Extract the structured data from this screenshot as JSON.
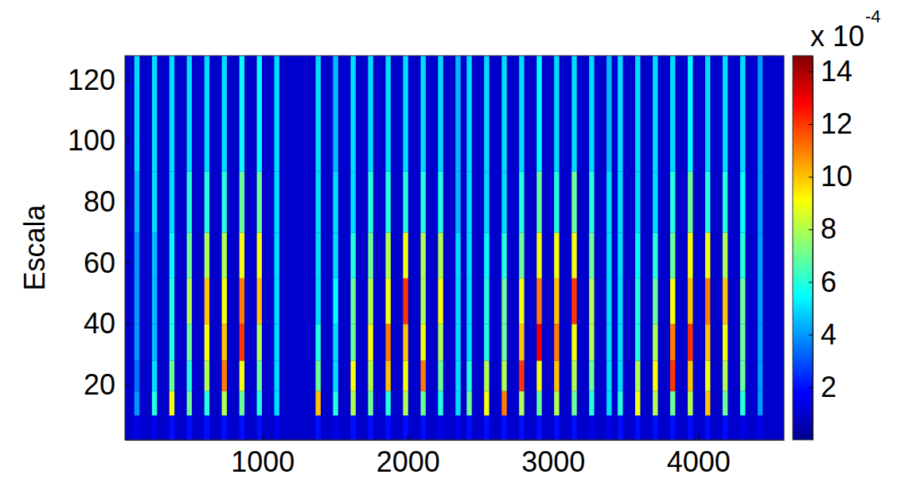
{
  "chart_data": {
    "type": "heatmap",
    "y_label": "Escala",
    "xlim": [
      53,
      4590
    ],
    "ylim": [
      2,
      128
    ],
    "xticks": [
      1000,
      2000,
      3000,
      4000
    ],
    "yticks": [
      20,
      40,
      60,
      80,
      100,
      120
    ],
    "y_edges": [
      2,
      10,
      18,
      28,
      40,
      55,
      70,
      90,
      128
    ],
    "cell_width": 35,
    "background": 1.0,
    "streaks": [
      {
        "x": 135,
        "values": [
          1.5,
          4,
          3.5,
          4,
          4,
          4,
          4.5,
          5
        ]
      },
      {
        "x": 256,
        "values": [
          1.5,
          6,
          5,
          4.5,
          4.5,
          4.5,
          5,
          5
        ]
      },
      {
        "x": 376,
        "values": [
          2,
          9,
          7,
          6,
          6,
          5.5,
          5,
          5
        ]
      },
      {
        "x": 496,
        "values": [
          2,
          7,
          6,
          7,
          8,
          7,
          6,
          5
        ]
      },
      {
        "x": 617,
        "values": [
          2,
          6,
          8,
          9,
          10,
          8,
          6,
          5
        ]
      },
      {
        "x": 737,
        "values": [
          2,
          8,
          11,
          10,
          9,
          8,
          6,
          5
        ]
      },
      {
        "x": 858,
        "values": [
          2,
          7,
          9,
          12,
          11,
          9,
          7,
          5.5
        ]
      },
      {
        "x": 978,
        "values": [
          2,
          6,
          7,
          8,
          10,
          9,
          7,
          5.5
        ]
      },
      {
        "x": 1098,
        "values": [
          1.5,
          5,
          5,
          5,
          5,
          5,
          5,
          5
        ]
      },
      {
        "x": 1383,
        "values": [
          2,
          10,
          7,
          6,
          5,
          5,
          5,
          5
        ]
      },
      {
        "x": 1503,
        "values": [
          1.5,
          6,
          5,
          5,
          5.5,
          5,
          5,
          4.5
        ]
      },
      {
        "x": 1624,
        "values": [
          2,
          8,
          9,
          7,
          7,
          6,
          5,
          5
        ]
      },
      {
        "x": 1744,
        "values": [
          2,
          7,
          8,
          9,
          8,
          7,
          6,
          5
        ]
      },
      {
        "x": 1865,
        "values": [
          2,
          6,
          10,
          11,
          9,
          8,
          6,
          5
        ]
      },
      {
        "x": 1985,
        "values": [
          2,
          8,
          9,
          10,
          12,
          9,
          6,
          5
        ]
      },
      {
        "x": 2106,
        "values": [
          2,
          7,
          11,
          9,
          8,
          8,
          6,
          5
        ]
      },
      {
        "x": 2226,
        "values": [
          1.5,
          6,
          7,
          8,
          9,
          8,
          6,
          5
        ]
      },
      {
        "x": 2346,
        "values": [
          1.5,
          5,
          5,
          5,
          5,
          5,
          4.5,
          4.5
        ]
      },
      {
        "x": 2423,
        "values": [
          2,
          7,
          6,
          5,
          5,
          5,
          5,
          5
        ]
      },
      {
        "x": 2543,
        "values": [
          2,
          9,
          8,
          6,
          6,
          5.5,
          5,
          5
        ]
      },
      {
        "x": 2664,
        "values": [
          2,
          11,
          8,
          7,
          7,
          6,
          5,
          5
        ]
      },
      {
        "x": 2784,
        "values": [
          2,
          8,
          12,
          10,
          9,
          7,
          6,
          5
        ]
      },
      {
        "x": 2905,
        "values": [
          2,
          7,
          9,
          13,
          11,
          9,
          7,
          5.5
        ]
      },
      {
        "x": 3025,
        "values": [
          2,
          8,
          10,
          11,
          10,
          9,
          6,
          5
        ]
      },
      {
        "x": 3146,
        "values": [
          2,
          7,
          8,
          9,
          12,
          9,
          7,
          5
        ]
      },
      {
        "x": 3266,
        "values": [
          1.5,
          6,
          7,
          8,
          8,
          7,
          6,
          5
        ]
      },
      {
        "x": 3386,
        "values": [
          1.5,
          5,
          5,
          5,
          5,
          5,
          5,
          4.5
        ]
      },
      {
        "x": 3463,
        "values": [
          2,
          6,
          5,
          5,
          5,
          5,
          5,
          5
        ]
      },
      {
        "x": 3583,
        "values": [
          2,
          9,
          8,
          6,
          6,
          5.5,
          5,
          5
        ]
      },
      {
        "x": 3704,
        "values": [
          2,
          8,
          9,
          8,
          7,
          6,
          5,
          5
        ]
      },
      {
        "x": 3824,
        "values": [
          2,
          7,
          12,
          11,
          9,
          7,
          6,
          5
        ]
      },
      {
        "x": 3945,
        "values": [
          2,
          8,
          10,
          12,
          10,
          9,
          7,
          5.5
        ]
      },
      {
        "x": 4065,
        "values": [
          2,
          10,
          9,
          10,
          11,
          9,
          6,
          5
        ]
      },
      {
        "x": 4185,
        "values": [
          2,
          7,
          8,
          9,
          10,
          8,
          6,
          5
        ]
      },
      {
        "x": 4306,
        "values": [
          1.5,
          6,
          7,
          7,
          7,
          6,
          5.5,
          5
        ]
      },
      {
        "x": 4426,
        "values": [
          1.5,
          4,
          4,
          4,
          4,
          4,
          4,
          4
        ]
      }
    ],
    "colorbar": {
      "range": [
        0,
        14.6
      ],
      "ticks": [
        2,
        4,
        6,
        8,
        10,
        12,
        14
      ],
      "multiplier": "x 10",
      "exponent": "-4"
    }
  }
}
